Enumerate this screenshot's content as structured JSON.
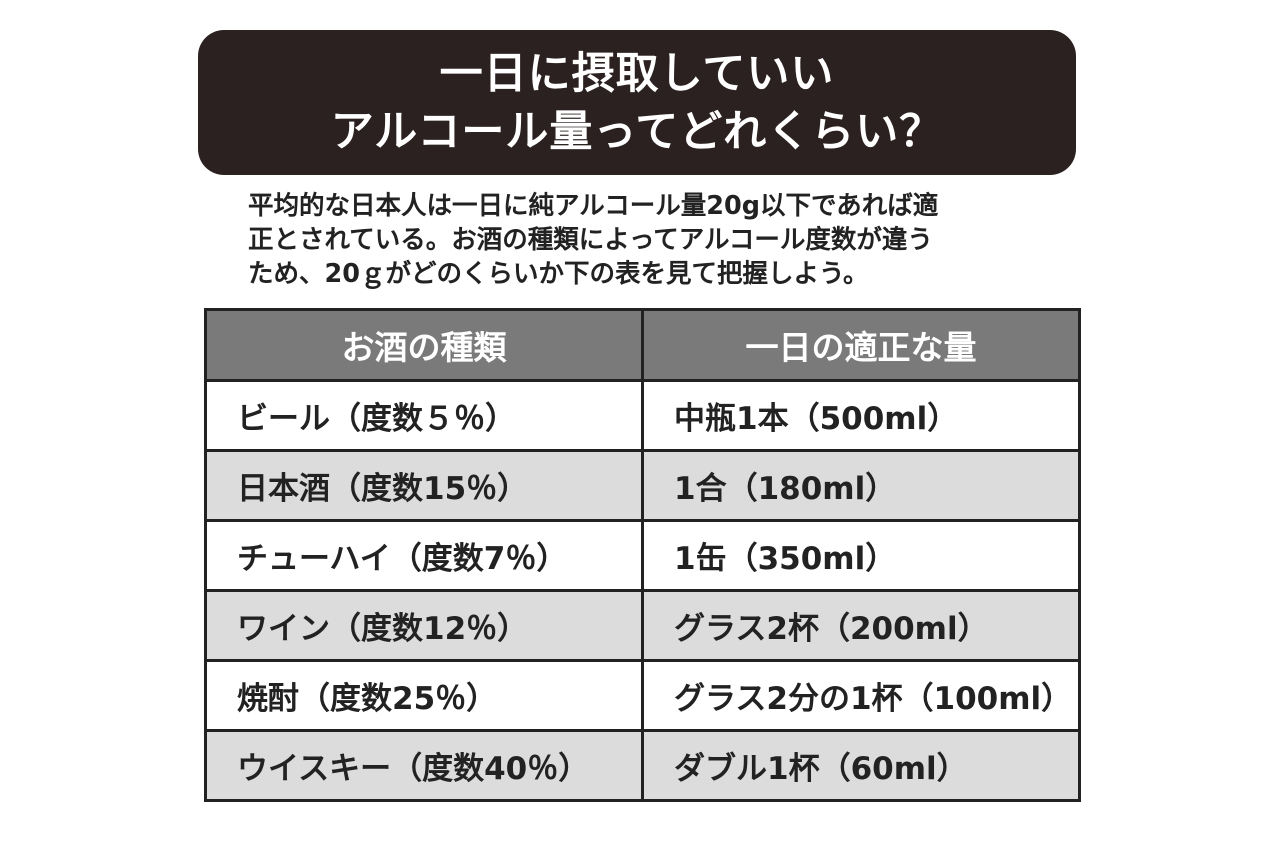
{
  "title": {
    "line1": "一日に摂取していい",
    "line2": "アルコール量ってどれくらい？"
  },
  "intro": {
    "line1": "平均的な日本人は一日に純アルコール量20g以下であれば適",
    "line2": "正とされている。お酒の種類によってアルコール度数が違う",
    "line3": "ため、20ｇがどのくらいか下の表を見て把握しよう。"
  },
  "table": {
    "headers": [
      "お酒の種類",
      "一日の適正な量"
    ],
    "rows": [
      {
        "type": "ビール（度数５％）",
        "amount": "中瓶1本（500ml）"
      },
      {
        "type": "日本酒（度数15％）",
        "amount": "1合（180ml）"
      },
      {
        "type": "チューハイ（度数7％）",
        "amount": "1缶（350ml）"
      },
      {
        "type": "ワイン（度数12％）",
        "amount": "グラス2杯（200ml）"
      },
      {
        "type": "焼酎（度数25％）",
        "amount": "グラス2分の1杯（100ml）"
      },
      {
        "type": "ウイスキー（度数40％）",
        "amount": "ダブル1杯（60ml）"
      }
    ]
  },
  "colors": {
    "title_background": "#2b2120",
    "header_background": "#7a7a7a",
    "stripe_background": "#dcdcdc",
    "border": "#222222"
  }
}
